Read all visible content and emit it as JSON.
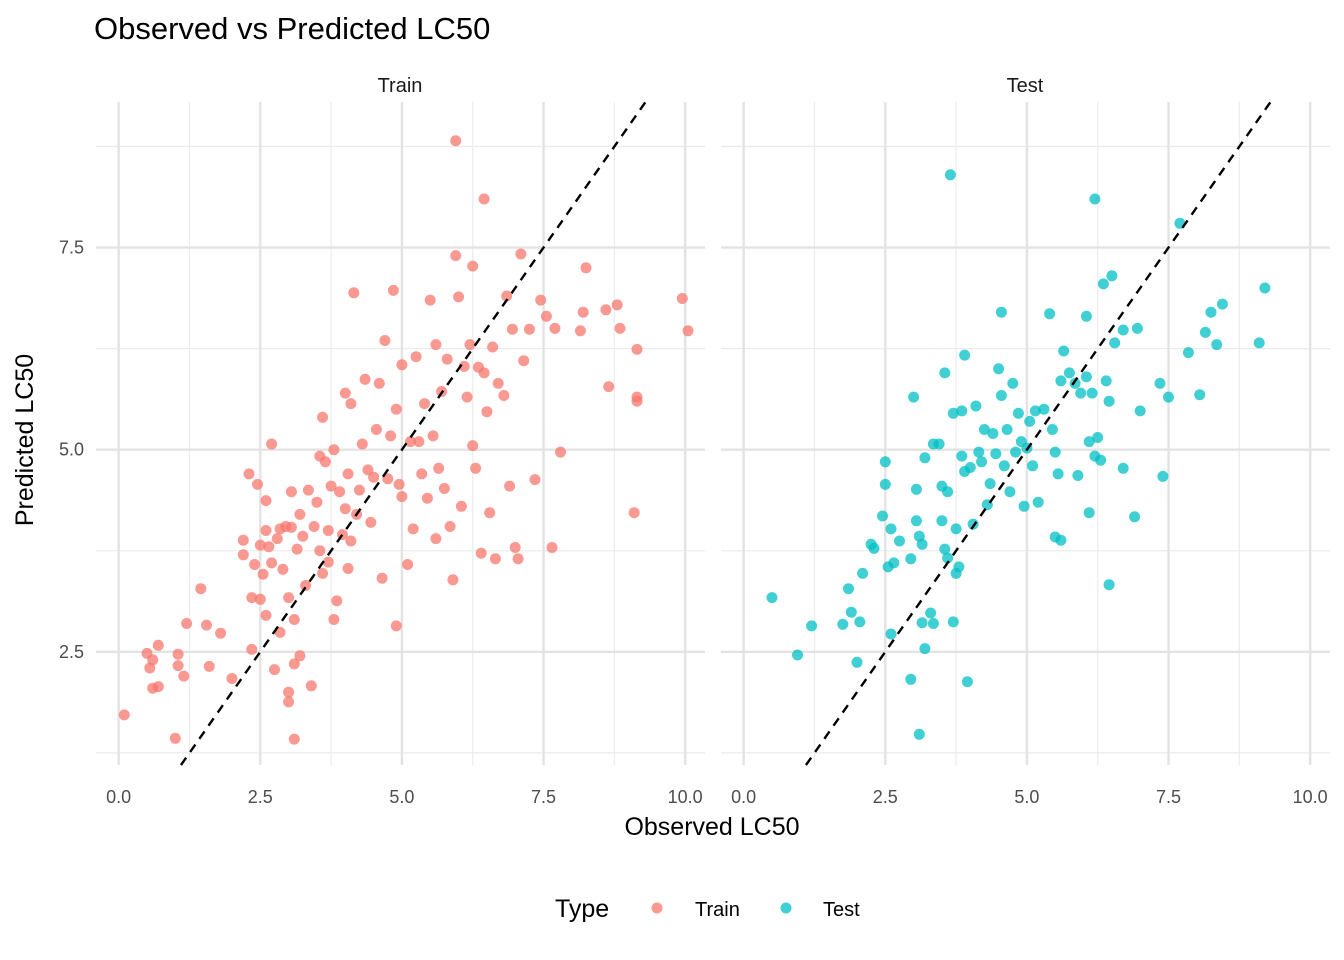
{
  "chart_data": {
    "type": "scatter",
    "title": "Observed vs Predicted LC50",
    "xlabel": "Observed LC50",
    "ylabel": "Predicted LC50",
    "xlim": [
      -0.4,
      10.35
    ],
    "ylim": [
      1.1,
      9.3
    ],
    "x_ticks": [
      "0.0",
      "2.5",
      "5.0",
      "7.5",
      "10.0"
    ],
    "y_ticks": [
      "2.5",
      "5.0",
      "7.5"
    ],
    "grid": true,
    "reference_line": "y = x (dashed)",
    "legend": {
      "title": "Type",
      "position": "bottom",
      "entries": [
        {
          "label": "Train",
          "color": "#F8766D"
        },
        {
          "label": "Test",
          "color": "#00BFC4"
        }
      ]
    },
    "panels": [
      {
        "name": "Train",
        "color": "#F8766D",
        "points": [
          [
            0.1,
            1.72
          ],
          [
            0.5,
            2.48
          ],
          [
            0.55,
            2.3
          ],
          [
            0.6,
            2.4
          ],
          [
            0.6,
            2.05
          ],
          [
            0.7,
            2.58
          ],
          [
            0.7,
            2.07
          ],
          [
            1.0,
            1.43
          ],
          [
            1.05,
            2.47
          ],
          [
            1.05,
            2.33
          ],
          [
            1.15,
            2.2
          ],
          [
            1.2,
            2.85
          ],
          [
            1.45,
            3.28
          ],
          [
            1.55,
            2.83
          ],
          [
            1.6,
            2.32
          ],
          [
            1.8,
            2.73
          ],
          [
            2.0,
            2.17
          ],
          [
            2.2,
            3.88
          ],
          [
            2.2,
            3.7
          ],
          [
            2.3,
            4.7
          ],
          [
            2.35,
            3.17
          ],
          [
            2.35,
            2.53
          ],
          [
            2.4,
            3.58
          ],
          [
            2.45,
            4.57
          ],
          [
            2.5,
            3.15
          ],
          [
            2.5,
            3.82
          ],
          [
            2.55,
            3.46
          ],
          [
            2.6,
            2.95
          ],
          [
            2.6,
            4.37
          ],
          [
            2.6,
            4.0
          ],
          [
            2.65,
            3.8
          ],
          [
            2.7,
            5.07
          ],
          [
            2.7,
            3.6
          ],
          [
            2.75,
            2.28
          ],
          [
            2.8,
            3.9
          ],
          [
            2.85,
            2.74
          ],
          [
            2.85,
            4.02
          ],
          [
            2.9,
            3.52
          ],
          [
            2.95,
            4.05
          ],
          [
            3.0,
            1.88
          ],
          [
            3.0,
            2.0
          ],
          [
            3.0,
            3.17
          ],
          [
            3.05,
            4.04
          ],
          [
            3.05,
            4.48
          ],
          [
            3.1,
            2.9
          ],
          [
            3.1,
            1.42
          ],
          [
            3.1,
            2.35
          ],
          [
            3.15,
            3.77
          ],
          [
            3.2,
            4.2
          ],
          [
            3.2,
            2.45
          ],
          [
            3.25,
            3.93
          ],
          [
            3.3,
            3.32
          ],
          [
            3.35,
            4.5
          ],
          [
            3.4,
            2.08
          ],
          [
            3.45,
            4.05
          ],
          [
            3.5,
            4.35
          ],
          [
            3.55,
            4.92
          ],
          [
            3.55,
            3.75
          ],
          [
            3.6,
            5.4
          ],
          [
            3.6,
            3.47
          ],
          [
            3.65,
            4.85
          ],
          [
            3.7,
            4.0
          ],
          [
            3.7,
            3.61
          ],
          [
            3.75,
            4.55
          ],
          [
            3.8,
            2.9
          ],
          [
            3.8,
            5.0
          ],
          [
            3.85,
            3.13
          ],
          [
            3.9,
            4.48
          ],
          [
            3.95,
            3.95
          ],
          [
            4.0,
            4.27
          ],
          [
            4.0,
            5.7
          ],
          [
            4.05,
            4.7
          ],
          [
            4.05,
            3.53
          ],
          [
            4.1,
            5.57
          ],
          [
            4.1,
            3.87
          ],
          [
            4.15,
            6.94
          ],
          [
            4.2,
            4.2
          ],
          [
            4.25,
            4.5
          ],
          [
            4.3,
            5.07
          ],
          [
            4.35,
            5.87
          ],
          [
            4.4,
            4.75
          ],
          [
            4.45,
            4.1
          ],
          [
            4.5,
            4.66
          ],
          [
            4.55,
            5.25
          ],
          [
            4.6,
            5.82
          ],
          [
            4.65,
            3.41
          ],
          [
            4.7,
            6.35
          ],
          [
            4.75,
            4.64
          ],
          [
            4.8,
            5.17
          ],
          [
            4.85,
            6.97
          ],
          [
            4.9,
            5.5
          ],
          [
            4.9,
            2.82
          ],
          [
            4.95,
            4.57
          ],
          [
            5.0,
            6.05
          ],
          [
            5.0,
            4.42
          ],
          [
            5.1,
            3.58
          ],
          [
            5.15,
            5.1
          ],
          [
            5.2,
            4.02
          ],
          [
            5.25,
            6.15
          ],
          [
            5.3,
            5.1
          ],
          [
            5.35,
            4.7
          ],
          [
            5.4,
            5.57
          ],
          [
            5.45,
            4.4
          ],
          [
            5.5,
            6.85
          ],
          [
            5.55,
            5.17
          ],
          [
            5.6,
            6.3
          ],
          [
            5.6,
            3.9
          ],
          [
            5.65,
            4.77
          ],
          [
            5.7,
            5.72
          ],
          [
            5.75,
            4.52
          ],
          [
            5.8,
            6.12
          ],
          [
            5.85,
            4.05
          ],
          [
            5.9,
            3.39
          ],
          [
            5.95,
            7.4
          ],
          [
            5.95,
            8.82
          ],
          [
            6.0,
            6.89
          ],
          [
            6.05,
            4.3
          ],
          [
            6.1,
            6.03
          ],
          [
            6.15,
            5.65
          ],
          [
            6.2,
            6.3
          ],
          [
            6.25,
            5.05
          ],
          [
            6.3,
            4.77
          ],
          [
            6.35,
            6.02
          ],
          [
            6.4,
            3.72
          ],
          [
            6.45,
            5.95
          ],
          [
            6.5,
            5.47
          ],
          [
            6.55,
            4.22
          ],
          [
            6.6,
            6.27
          ],
          [
            6.65,
            3.65
          ],
          [
            6.7,
            5.82
          ],
          [
            6.8,
            5.67
          ],
          [
            6.85,
            6.9
          ],
          [
            6.9,
            4.55
          ],
          [
            6.95,
            6.49
          ],
          [
            7.0,
            3.79
          ],
          [
            7.05,
            3.65
          ],
          [
            7.1,
            7.42
          ],
          [
            7.15,
            6.1
          ],
          [
            7.25,
            6.49
          ],
          [
            7.35,
            4.63
          ],
          [
            7.45,
            6.85
          ],
          [
            7.55,
            6.65
          ],
          [
            7.65,
            3.79
          ],
          [
            7.7,
            6.5
          ],
          [
            7.8,
            4.97
          ],
          [
            8.15,
            6.47
          ],
          [
            8.2,
            6.7
          ],
          [
            8.25,
            7.25
          ],
          [
            8.6,
            6.73
          ],
          [
            8.65,
            5.78
          ],
          [
            8.8,
            6.79
          ],
          [
            8.85,
            6.5
          ],
          [
            9.1,
            4.22
          ],
          [
            9.15,
            6.24
          ],
          [
            9.15,
            5.65
          ],
          [
            9.15,
            5.6
          ],
          [
            9.95,
            6.87
          ],
          [
            10.05,
            6.47
          ],
          [
            6.45,
            8.1
          ],
          [
            6.25,
            7.27
          ]
        ]
      },
      {
        "name": "Test",
        "color": "#00BFC4",
        "points": [
          [
            0.5,
            3.17
          ],
          [
            0.95,
            2.46
          ],
          [
            1.2,
            2.82
          ],
          [
            1.75,
            2.84
          ],
          [
            1.85,
            3.28
          ],
          [
            1.9,
            2.99
          ],
          [
            2.0,
            2.37
          ],
          [
            2.05,
            2.87
          ],
          [
            2.1,
            3.47
          ],
          [
            2.25,
            3.83
          ],
          [
            2.3,
            3.78
          ],
          [
            2.45,
            4.18
          ],
          [
            2.5,
            4.85
          ],
          [
            2.5,
            4.57
          ],
          [
            2.55,
            3.55
          ],
          [
            2.6,
            4.02
          ],
          [
            2.6,
            2.72
          ],
          [
            2.65,
            3.6
          ],
          [
            2.75,
            3.87
          ],
          [
            2.95,
            3.65
          ],
          [
            2.95,
            2.16
          ],
          [
            3.0,
            5.65
          ],
          [
            3.05,
            4.12
          ],
          [
            3.05,
            4.51
          ],
          [
            3.1,
            3.93
          ],
          [
            3.1,
            1.48
          ],
          [
            3.15,
            3.83
          ],
          [
            3.15,
            2.86
          ],
          [
            3.2,
            4.9
          ],
          [
            3.2,
            2.54
          ],
          [
            3.3,
            2.98
          ],
          [
            3.35,
            2.85
          ],
          [
            3.35,
            5.07
          ],
          [
            3.45,
            5.07
          ],
          [
            3.5,
            4.55
          ],
          [
            3.5,
            4.12
          ],
          [
            3.55,
            5.95
          ],
          [
            3.55,
            3.77
          ],
          [
            3.6,
            4.48
          ],
          [
            3.6,
            3.66
          ],
          [
            3.65,
            8.4
          ],
          [
            3.7,
            2.87
          ],
          [
            3.7,
            5.45
          ],
          [
            3.75,
            4.02
          ],
          [
            3.75,
            3.47
          ],
          [
            3.8,
            3.55
          ],
          [
            3.85,
            5.48
          ],
          [
            3.85,
            4.92
          ],
          [
            3.9,
            6.17
          ],
          [
            3.9,
            4.73
          ],
          [
            3.95,
            2.13
          ],
          [
            4.0,
            4.78
          ],
          [
            4.05,
            4.08
          ],
          [
            4.1,
            5.54
          ],
          [
            4.15,
            4.97
          ],
          [
            4.2,
            4.85
          ],
          [
            4.25,
            5.25
          ],
          [
            4.3,
            4.32
          ],
          [
            4.35,
            4.58
          ],
          [
            4.4,
            5.2
          ],
          [
            4.45,
            4.95
          ],
          [
            4.5,
            6.0
          ],
          [
            4.55,
            6.7
          ],
          [
            4.55,
            5.67
          ],
          [
            4.6,
            4.8
          ],
          [
            4.65,
            5.25
          ],
          [
            4.7,
            4.48
          ],
          [
            4.75,
            5.82
          ],
          [
            4.8,
            4.97
          ],
          [
            4.85,
            5.45
          ],
          [
            4.9,
            5.1
          ],
          [
            4.95,
            4.3
          ],
          [
            5.0,
            5.02
          ],
          [
            5.05,
            5.35
          ],
          [
            5.1,
            4.8
          ],
          [
            5.15,
            5.48
          ],
          [
            5.2,
            4.35
          ],
          [
            5.3,
            5.5
          ],
          [
            5.4,
            6.68
          ],
          [
            5.45,
            5.25
          ],
          [
            5.5,
            3.92
          ],
          [
            5.5,
            4.97
          ],
          [
            5.55,
            4.7
          ],
          [
            5.6,
            5.85
          ],
          [
            5.6,
            3.88
          ],
          [
            5.65,
            6.22
          ],
          [
            5.75,
            5.95
          ],
          [
            5.85,
            5.82
          ],
          [
            5.9,
            4.68
          ],
          [
            5.95,
            5.7
          ],
          [
            6.05,
            6.65
          ],
          [
            6.05,
            5.9
          ],
          [
            6.1,
            5.1
          ],
          [
            6.1,
            4.22
          ],
          [
            6.15,
            5.7
          ],
          [
            6.2,
            4.92
          ],
          [
            6.2,
            8.1
          ],
          [
            6.25,
            5.15
          ],
          [
            6.3,
            4.87
          ],
          [
            6.35,
            7.05
          ],
          [
            6.4,
            5.85
          ],
          [
            6.45,
            5.6
          ],
          [
            6.45,
            3.33
          ],
          [
            6.5,
            7.15
          ],
          [
            6.55,
            6.32
          ],
          [
            6.7,
            6.48
          ],
          [
            6.7,
            4.77
          ],
          [
            6.9,
            4.17
          ],
          [
            6.95,
            6.5
          ],
          [
            7.0,
            5.48
          ],
          [
            7.35,
            5.82
          ],
          [
            7.4,
            4.67
          ],
          [
            7.5,
            5.65
          ],
          [
            7.7,
            7.8
          ],
          [
            7.85,
            6.2
          ],
          [
            8.05,
            5.68
          ],
          [
            8.15,
            6.45
          ],
          [
            8.25,
            6.7
          ],
          [
            8.35,
            6.3
          ],
          [
            8.45,
            6.8
          ],
          [
            9.1,
            6.32
          ],
          [
            9.2,
            7.0
          ]
        ]
      }
    ]
  }
}
